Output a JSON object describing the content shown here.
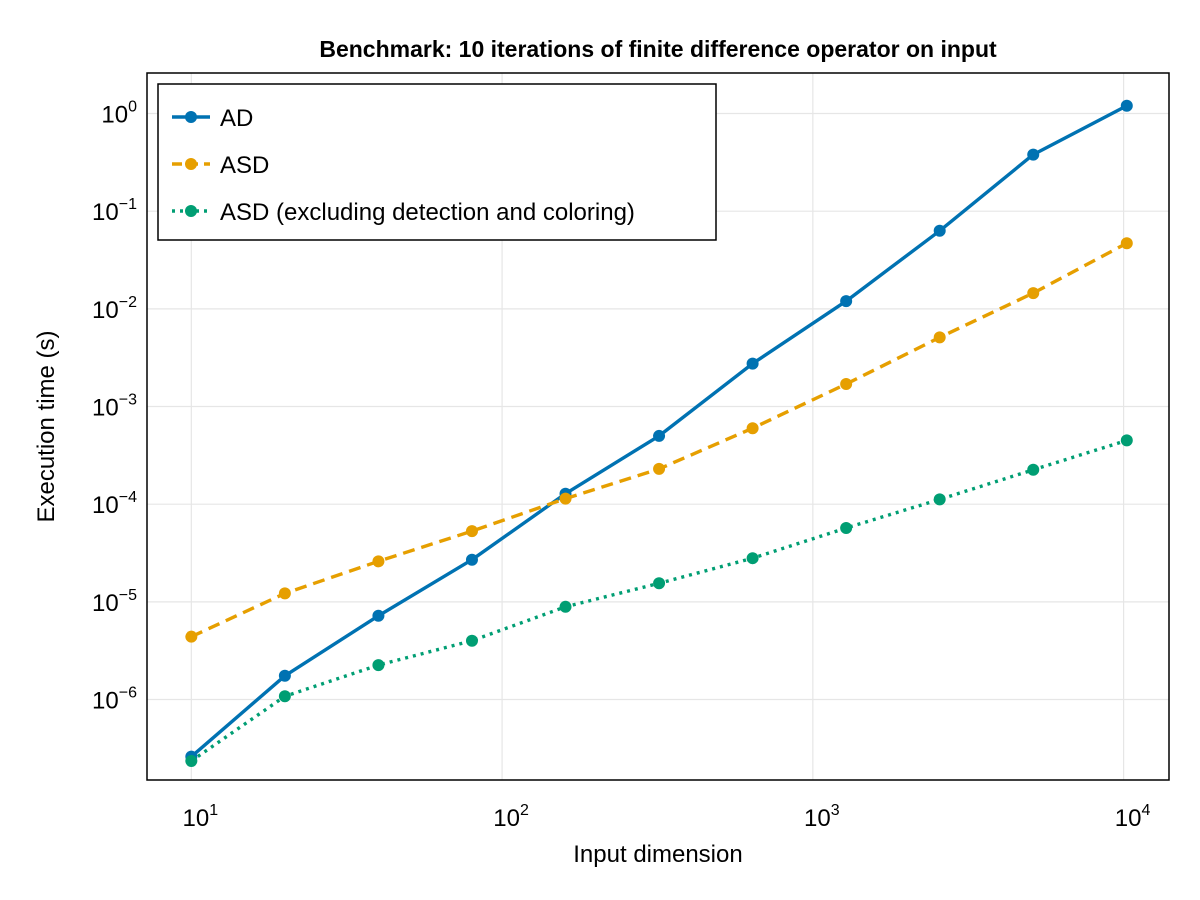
{
  "chart_data": {
    "type": "line",
    "title": "Benchmark: 10 iterations of finite difference operator on input",
    "xlabel": "Input dimension",
    "ylabel": "Execution time (s)",
    "xscale": "log",
    "yscale": "log",
    "xlim": [
      7.2,
      14000
    ],
    "ylim": [
      1.5e-07,
      2.6
    ],
    "grid": true,
    "legend_position": "top-left",
    "x_ticks": [
      {
        "value": 10,
        "base": "10",
        "exp": "1"
      },
      {
        "value": 100,
        "base": "10",
        "exp": "2"
      },
      {
        "value": 1000,
        "base": "10",
        "exp": "3"
      },
      {
        "value": 10000,
        "base": "10",
        "exp": "4"
      }
    ],
    "y_ticks": [
      {
        "value": 1e-06,
        "base": "10",
        "exp": "−6"
      },
      {
        "value": 1e-05,
        "base": "10",
        "exp": "−5"
      },
      {
        "value": 0.0001,
        "base": "10",
        "exp": "−4"
      },
      {
        "value": 0.001,
        "base": "10",
        "exp": "−3"
      },
      {
        "value": 0.01,
        "base": "10",
        "exp": "−2"
      },
      {
        "value": 0.1,
        "base": "10",
        "exp": "−1"
      },
      {
        "value": 1,
        "base": "10",
        "exp": "0"
      }
    ],
    "x": [
      10,
      20,
      40,
      80,
      160,
      320,
      640,
      1280,
      2560,
      5120,
      10240
    ],
    "series": [
      {
        "name": "AD",
        "color": "#0072B2",
        "linestyle": "solid",
        "values": [
          2.6e-07,
          1.75e-06,
          7.2e-06,
          2.7e-05,
          0.000128,
          0.0005,
          0.00275,
          0.012,
          0.063,
          0.38,
          1.2
        ]
      },
      {
        "name": "ASD",
        "color": "#E69F00",
        "linestyle": "dashed",
        "values": [
          4.4e-06,
          1.22e-05,
          2.6e-05,
          5.3e-05,
          0.000114,
          0.00023,
          0.0006,
          0.0017,
          0.0051,
          0.0145,
          0.047
        ]
      },
      {
        "name": "ASD (excluding detection and coloring)",
        "color": "#009E73",
        "linestyle": "dotted",
        "values": [
          2.35e-07,
          1.08e-06,
          2.25e-06,
          4e-06,
          8.9e-06,
          1.55e-05,
          2.8e-05,
          5.7e-05,
          0.000112,
          0.000225,
          0.00045
        ]
      }
    ]
  }
}
